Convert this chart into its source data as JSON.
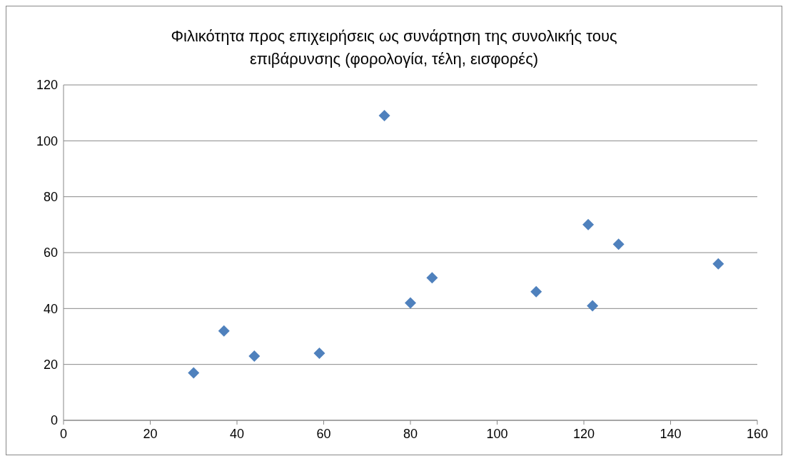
{
  "chart_data": {
    "type": "scatter",
    "title": "Φιλικότητα προς επιχειρήσεις ως συνάρτηση της συνολικής τους επιβάρυνσης (φορολογία, τέλη, εισφορές)",
    "x": [
      30,
      37,
      44,
      59,
      74,
      80,
      85,
      109,
      121,
      122,
      128,
      151
    ],
    "series": [
      {
        "color": "#4f81bd",
        "values": [
          17,
          32,
          23,
          24,
          109,
          42,
          51,
          46,
          70,
          41,
          63,
          56
        ]
      }
    ],
    "xlim": [
      0,
      160
    ],
    "xticks": [
      0,
      20,
      40,
      60,
      80,
      100,
      120,
      140,
      160
    ],
    "ylim": [
      0,
      120
    ],
    "yticks": [
      0,
      20,
      40,
      60,
      80,
      100,
      120
    ],
    "grid": "y",
    "marker": "diamond"
  }
}
